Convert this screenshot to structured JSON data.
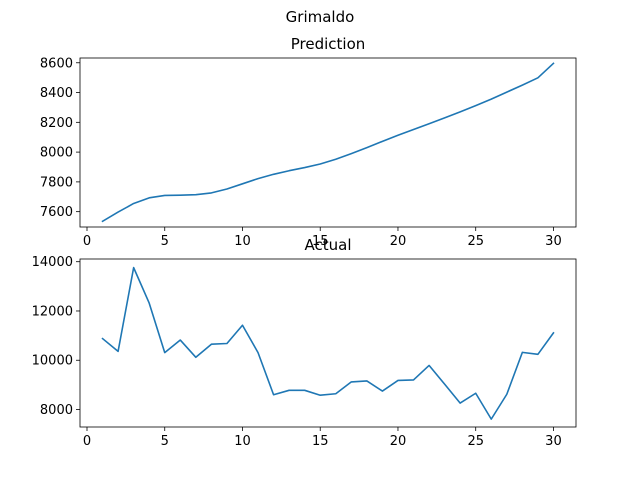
{
  "figure": {
    "suptitle": "Grimaldo"
  },
  "chart_data": [
    {
      "type": "line",
      "title": "Prediction",
      "xlabel": "",
      "ylabel": "",
      "color": "#1f77b4",
      "xlim": [
        -0.45,
        31.45
      ],
      "ylim": [
        7497,
        8632
      ],
      "xticks": [
        0,
        5,
        10,
        15,
        20,
        25,
        30
      ],
      "yticks": [
        7600,
        7800,
        8000,
        8200,
        8400,
        8600
      ],
      "grid": false,
      "x": [
        1,
        2,
        3,
        4,
        5,
        6,
        7,
        8,
        9,
        10,
        11,
        12,
        13,
        14,
        15,
        16,
        17,
        18,
        19,
        20,
        21,
        22,
        23,
        24,
        25,
        26,
        27,
        28,
        29,
        30
      ],
      "y": [
        7535,
        7597,
        7655,
        7693,
        7709,
        7711,
        7714,
        7726,
        7752,
        7787,
        7822,
        7851,
        7875,
        7896,
        7920,
        7952,
        7990,
        8030,
        8072,
        8113,
        8152,
        8190,
        8230,
        8270,
        8312,
        8356,
        8403,
        8450,
        8499,
        8596
      ]
    },
    {
      "type": "line",
      "title": "Actual",
      "xlabel": "",
      "ylabel": "",
      "color": "#1f77b4",
      "xlim": [
        -0.45,
        31.45
      ],
      "ylim": [
        7290,
        14110
      ],
      "xticks": [
        0,
        5,
        10,
        15,
        20,
        25,
        30
      ],
      "yticks": [
        8000,
        10000,
        12000,
        14000
      ],
      "grid": false,
      "x": [
        1,
        2,
        3,
        4,
        5,
        6,
        7,
        8,
        9,
        10,
        11,
        12,
        13,
        14,
        15,
        16,
        17,
        18,
        19,
        20,
        21,
        22,
        23,
        24,
        25,
        26,
        27,
        28,
        29,
        30
      ],
      "y": [
        10880,
        10360,
        13760,
        12320,
        10310,
        10820,
        10120,
        10650,
        10680,
        11420,
        10310,
        8600,
        8780,
        8780,
        8580,
        8640,
        9120,
        9160,
        8750,
        9180,
        9200,
        9790,
        9030,
        8260,
        8660,
        7610,
        8620,
        10320,
        10240,
        11110
      ]
    }
  ]
}
